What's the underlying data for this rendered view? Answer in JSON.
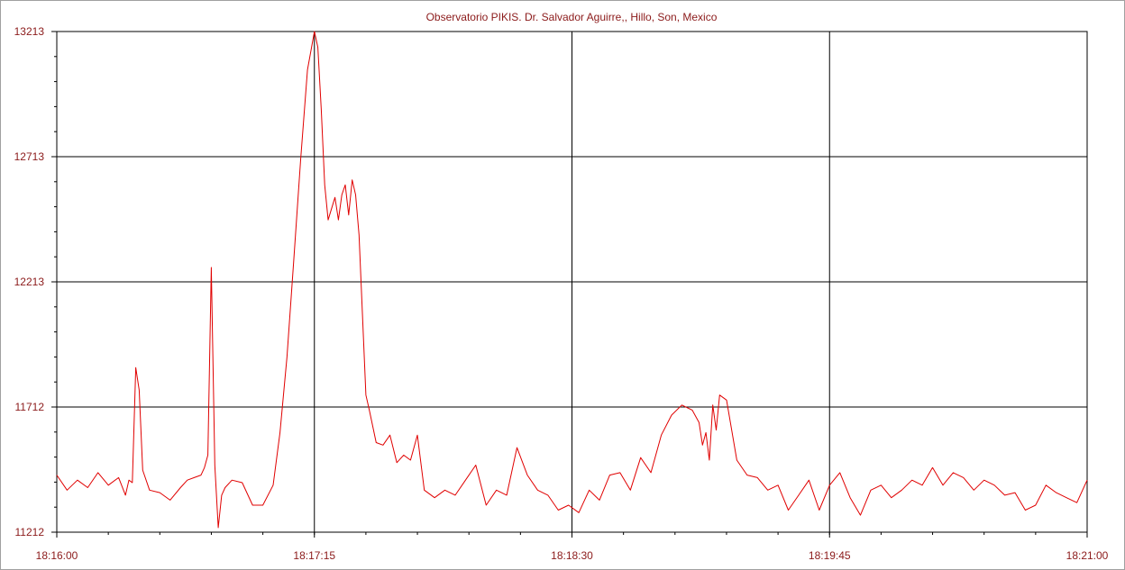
{
  "chart_data": {
    "type": "line",
    "title": "Observatorio PIKIS. Dr. Salvador Aguirre,, Hillo, Son, Mexico",
    "xlabel": "",
    "ylabel": "",
    "x_range": [
      "18:16:00",
      "18:21:00"
    ],
    "ylim": [
      11212,
      13213
    ],
    "x_tick_labels": [
      "18:16:00",
      "18:17:15",
      "18:18:30",
      "18:19:45",
      "18:21:00"
    ],
    "y_tick_labels": [
      "13213",
      "12713",
      "12213",
      "11712",
      "11212"
    ],
    "grid": true,
    "series": [
      {
        "color": "#e00000",
        "x": [
          "18:16:00",
          "18:16:03",
          "18:16:06",
          "18:16:09",
          "18:16:12",
          "18:16:15",
          "18:16:18",
          "18:16:20",
          "18:16:21",
          "18:16:22",
          "18:16:23",
          "18:16:24",
          "18:16:25",
          "18:16:27",
          "18:16:30",
          "18:16:33",
          "18:16:36",
          "18:16:38",
          "18:16:40",
          "18:16:42",
          "18:16:43",
          "18:16:44",
          "18:16:45",
          "18:16:46",
          "18:16:47",
          "18:16:48",
          "18:16:49",
          "18:16:51",
          "18:16:54",
          "18:16:57",
          "18:17:00",
          "18:17:03",
          "18:17:05",
          "18:17:07",
          "18:17:09",
          "18:17:11",
          "18:17:13",
          "18:17:15",
          "18:17:16",
          "18:17:17",
          "18:17:18",
          "18:17:19",
          "18:17:21",
          "18:17:22",
          "18:17:23",
          "18:17:24",
          "18:17:25",
          "18:17:26",
          "18:17:27",
          "18:17:28",
          "18:17:29",
          "18:17:30",
          "18:17:31",
          "18:17:33",
          "18:17:35",
          "18:17:37",
          "18:17:39",
          "18:17:41",
          "18:17:43",
          "18:17:45",
          "18:17:47",
          "18:17:50",
          "18:17:53",
          "18:17:56",
          "18:17:59",
          "18:18:02",
          "18:18:05",
          "18:18:08",
          "18:18:11",
          "18:18:14",
          "18:18:17",
          "18:18:20",
          "18:18:23",
          "18:18:26",
          "18:18:29",
          "18:18:32",
          "18:18:35",
          "18:18:38",
          "18:18:41",
          "18:18:44",
          "18:18:47",
          "18:18:50",
          "18:18:53",
          "18:18:56",
          "18:18:59",
          "18:19:02",
          "18:19:05",
          "18:19:07",
          "18:19:08",
          "18:19:09",
          "18:19:10",
          "18:19:11",
          "18:19:12",
          "18:19:13",
          "18:19:15",
          "18:19:18",
          "18:19:21",
          "18:19:24",
          "18:19:27",
          "18:19:30",
          "18:19:33",
          "18:19:36",
          "18:19:39",
          "18:19:42",
          "18:19:45",
          "18:19:48",
          "18:19:51",
          "18:19:54",
          "18:19:57",
          "18:20:00",
          "18:20:03",
          "18:20:06",
          "18:20:09",
          "18:20:12",
          "18:20:15",
          "18:20:18",
          "18:20:21",
          "18:20:24",
          "18:20:27",
          "18:20:30",
          "18:20:33",
          "18:20:36",
          "18:20:39",
          "18:20:42",
          "18:20:45",
          "18:20:48",
          "18:20:51",
          "18:20:54",
          "18:20:57",
          "18:21:00"
        ],
        "y": [
          11440,
          11380,
          11420,
          11390,
          11450,
          11400,
          11430,
          11360,
          11420,
          11410,
          11870,
          11780,
          11460,
          11380,
          11370,
          11340,
          11390,
          11420,
          11430,
          11440,
          11470,
          11520,
          12270,
          11480,
          11230,
          11360,
          11390,
          11420,
          11410,
          11320,
          11320,
          11400,
          11610,
          11910,
          12300,
          12700,
          13060,
          13213,
          13150,
          12900,
          12600,
          12460,
          12550,
          12460,
          12560,
          12600,
          12480,
          12620,
          12560,
          12400,
          12080,
          11760,
          11700,
          11570,
          11560,
          11600,
          11490,
          11520,
          11500,
          11600,
          11380,
          11350,
          11380,
          11360,
          11420,
          11480,
          11320,
          11380,
          11360,
          11550,
          11440,
          11380,
          11360,
          11300,
          11320,
          11290,
          11380,
          11340,
          11440,
          11450,
          11380,
          11510,
          11450,
          11600,
          11680,
          11720,
          11700,
          11650,
          11560,
          11610,
          11500,
          11720,
          11620,
          11760,
          11740,
          11500,
          11440,
          11430,
          11380,
          11400,
          11300,
          11360,
          11420,
          11300,
          11400,
          11450,
          11350,
          11280,
          11380,
          11400,
          11350,
          11380,
          11420,
          11400,
          11470,
          11400,
          11450,
          11430,
          11380,
          11420,
          11400,
          11360,
          11370,
          11300,
          11320,
          11400,
          11370,
          11350,
          11330,
          11420
        ]
      }
    ]
  }
}
